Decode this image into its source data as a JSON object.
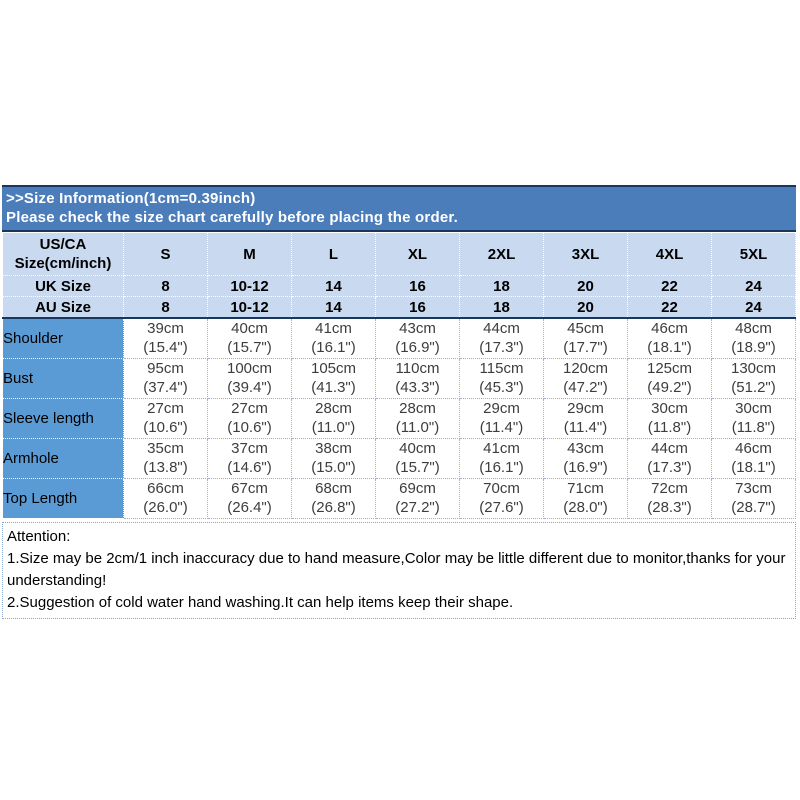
{
  "banner": {
    "line1": ">>Size Information(1cm=0.39inch)",
    "line2": "Please check the size chart carefully before placing the order."
  },
  "size_table": {
    "corner": {
      "line1": "US/CA",
      "line2": "Size(cm/inch)"
    },
    "columns": [
      "S",
      "M",
      "L",
      "XL",
      "2XL",
      "3XL",
      "4XL",
      "5XL"
    ],
    "size_rows": [
      {
        "label": "UK Size",
        "values": [
          "8",
          "10-12",
          "14",
          "16",
          "18",
          "20",
          "22",
          "24"
        ]
      },
      {
        "label": "AU Size",
        "values": [
          "8",
          "10-12",
          "14",
          "16",
          "18",
          "20",
          "22",
          "24"
        ]
      }
    ],
    "measure_rows": [
      {
        "label": "Shoulder",
        "cm": [
          "39cm",
          "40cm",
          "41cm",
          "43cm",
          "44cm",
          "45cm",
          "46cm",
          "48cm"
        ],
        "inch": [
          "(15.4\")",
          "(15.7\")",
          "(16.1\")",
          "(16.9\")",
          "(17.3\")",
          "(17.7\")",
          "(18.1\")",
          "(18.9\")"
        ]
      },
      {
        "label": "Bust",
        "cm": [
          "95cm",
          "100cm",
          "105cm",
          "110cm",
          "115cm",
          "120cm",
          "125cm",
          "130cm"
        ],
        "inch": [
          "(37.4\")",
          "(39.4\")",
          "(41.3\")",
          "(43.3\")",
          "(45.3\")",
          "(47.2\")",
          "(49.2\")",
          "(51.2\")"
        ]
      },
      {
        "label": "Sleeve length",
        "cm": [
          "27cm",
          "27cm",
          "28cm",
          "28cm",
          "29cm",
          "29cm",
          "30cm",
          "30cm"
        ],
        "inch": [
          "(10.6\")",
          "(10.6\")",
          "(11.0\")",
          "(11.0\")",
          "(11.4\")",
          "(11.4\")",
          "(11.8\")",
          "(11.8\")"
        ]
      },
      {
        "label": "Armhole",
        "cm": [
          "35cm",
          "37cm",
          "38cm",
          "40cm",
          "41cm",
          "43cm",
          "44cm",
          "46cm"
        ],
        "inch": [
          "(13.8\")",
          "(14.6\")",
          "(15.0\")",
          "(15.7\")",
          "(16.1\")",
          "(16.9\")",
          "(17.3\")",
          "(18.1\")"
        ]
      },
      {
        "label": "Top Length",
        "cm": [
          "66cm",
          "67cm",
          "68cm",
          "69cm",
          "70cm",
          "71cm",
          "72cm",
          "73cm"
        ],
        "inch": [
          "(26.0\")",
          "(26.4\")",
          "(26.8\")",
          "(27.2\")",
          "(27.6\")",
          "(28.0\")",
          "(28.3\")",
          "(28.7\")"
        ]
      }
    ]
  },
  "attention": {
    "title": "Attention:",
    "notes": [
      "1.Size may be 2cm/1 inch inaccuracy due to hand measure,Color may be little different due to monitor,thanks for your understanding!",
      "2.Suggestion of cold water hand washing.It can help items keep their shape."
    ]
  },
  "colors": {
    "banner_bg": "#4c7dbb",
    "dark_border": "#17375e",
    "header_bg": "#c9daf0",
    "label_bg": "#5b9bd5",
    "grid_dot": "#95b3d7"
  }
}
